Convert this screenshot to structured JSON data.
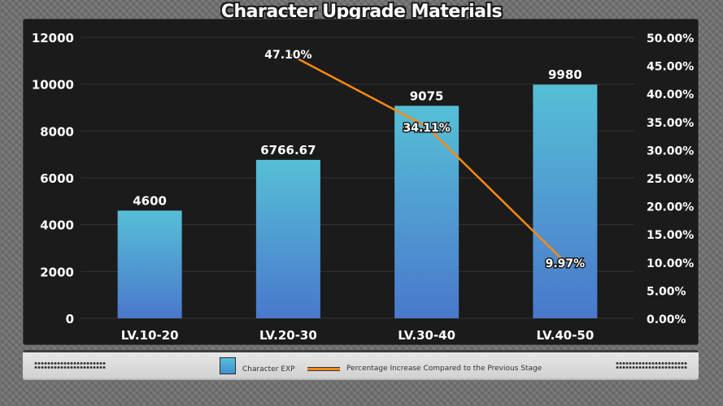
{
  "chart_data": {
    "type": "bar+line",
    "title": "Character Upgrade Materials",
    "categories": [
      "LV.10-20",
      "LV.20-30",
      "LV.30-40",
      "LV.40-50"
    ],
    "series": [
      {
        "name": "Character EXP",
        "type": "bar",
        "axis": "left",
        "values": [
          4600,
          6766.67,
          9075,
          9980
        ],
        "labels": [
          "4600",
          "6766.67",
          "9075",
          "9980"
        ]
      },
      {
        "name": "Percentage Increase Compared to the Previous Stage",
        "type": "line",
        "axis": "right",
        "x": [
          "LV.20-30",
          "LV.30-40",
          "LV.40-50"
        ],
        "values": [
          47.1,
          34.11,
          9.97
        ],
        "labels": [
          "47.10%",
          "34.11%",
          "9.97%"
        ]
      }
    ],
    "y_left": {
      "range": [
        0,
        12000
      ],
      "ticks": [
        "0",
        "2000",
        "4000",
        "6000",
        "8000",
        "10000",
        "12000"
      ]
    },
    "y_right": {
      "range": [
        0,
        50
      ],
      "ticks": [
        "0.00%",
        "5.00%",
        "10.00%",
        "15.00%",
        "20.00%",
        "25.00%",
        "30.00%",
        "35.00%",
        "40.00%",
        "45.00%",
        "50.00%"
      ]
    },
    "grid": true,
    "legend_position": "bottom",
    "colors": {
      "bar_top": "#56bfd6",
      "bar_bottom": "#4a78cc",
      "line": "#ff8a12",
      "grid": "#333333",
      "text": "#ffffff"
    }
  }
}
